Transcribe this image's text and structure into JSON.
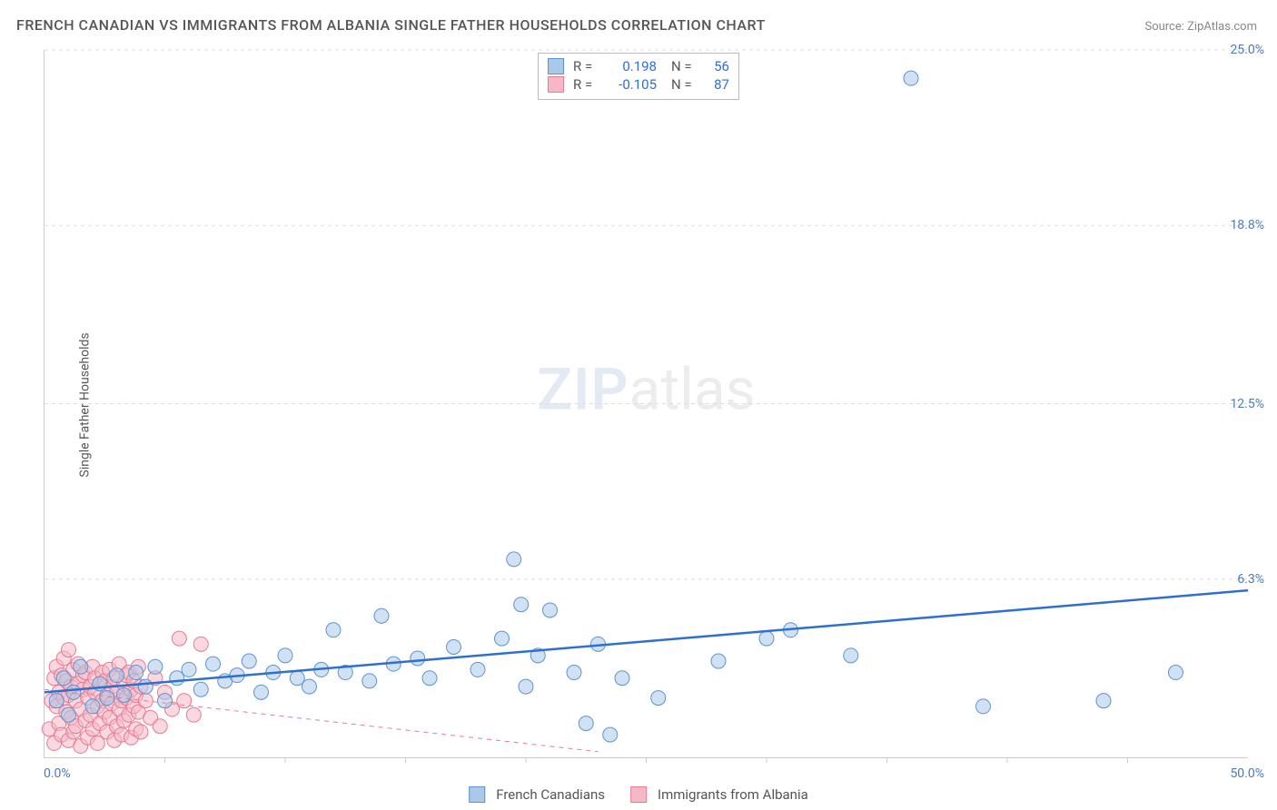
{
  "title": "FRENCH CANADIAN VS IMMIGRANTS FROM ALBANIA SINGLE FATHER HOUSEHOLDS CORRELATION CHART",
  "source": "Source: ZipAtlas.com",
  "y_axis_label": "Single Father Households",
  "watermark": {
    "zip": "ZIP",
    "atlas": "atlas"
  },
  "chart": {
    "type": "scatter",
    "xlim": [
      0,
      50
    ],
    "ylim": [
      0,
      25
    ],
    "x_min_label": "0.0%",
    "x_max_label": "50.0%",
    "y_ticks": [
      {
        "v": 6.3,
        "label": "6.3%"
      },
      {
        "v": 12.5,
        "label": "12.5%"
      },
      {
        "v": 18.8,
        "label": "18.8%"
      },
      {
        "v": 25.0,
        "label": "25.0%"
      }
    ],
    "x_minor_ticks": [
      5,
      10,
      15,
      20,
      25,
      30,
      35,
      40,
      45
    ],
    "background_color": "#ffffff",
    "grid_color": "#dddddd",
    "axis_color": "#cccccc",
    "tick_label_color": "#4a7ab8",
    "axis_label_color": "#555555",
    "marker_radius": 8,
    "marker_opacity": 0.55,
    "marker_stroke_width": 1,
    "trend_line_width_primary": 2.5,
    "trend_line_width_secondary": 1,
    "trend_dash_secondary": "5 5"
  },
  "series": [
    {
      "name": "French Canadians",
      "color_fill": "#a9c8ea",
      "color_stroke": "#5e93cf",
      "trend_color": "#2e6fd0",
      "trend": {
        "x1": 0,
        "y1": 2.3,
        "x2": 50,
        "y2": 5.9
      },
      "R": "0.198",
      "N": "56",
      "stat_color": "#2e6fd0",
      "points": [
        [
          0.5,
          2.0
        ],
        [
          0.8,
          2.8
        ],
        [
          1.0,
          1.5
        ],
        [
          1.2,
          2.3
        ],
        [
          1.5,
          3.2
        ],
        [
          2.0,
          1.8
        ],
        [
          2.3,
          2.6
        ],
        [
          2.6,
          2.1
        ],
        [
          3.0,
          2.9
        ],
        [
          3.3,
          2.2
        ],
        [
          3.8,
          3.0
        ],
        [
          4.2,
          2.5
        ],
        [
          4.6,
          3.2
        ],
        [
          5.0,
          2.0
        ],
        [
          5.5,
          2.8
        ],
        [
          6.0,
          3.1
        ],
        [
          6.5,
          2.4
        ],
        [
          7.0,
          3.3
        ],
        [
          7.5,
          2.7
        ],
        [
          8.0,
          2.9
        ],
        [
          8.5,
          3.4
        ],
        [
          9.0,
          2.3
        ],
        [
          9.5,
          3.0
        ],
        [
          10.0,
          3.6
        ],
        [
          10.5,
          2.8
        ],
        [
          11.0,
          2.5
        ],
        [
          11.5,
          3.1
        ],
        [
          12.0,
          4.5
        ],
        [
          12.5,
          3.0
        ],
        [
          13.5,
          2.7
        ],
        [
          14.0,
          5.0
        ],
        [
          14.5,
          3.3
        ],
        [
          15.5,
          3.5
        ],
        [
          16.0,
          2.8
        ],
        [
          17.0,
          3.9
        ],
        [
          18.0,
          3.1
        ],
        [
          19.0,
          4.2
        ],
        [
          19.5,
          7.0
        ],
        [
          19.8,
          5.4
        ],
        [
          20.0,
          2.5
        ],
        [
          20.5,
          3.6
        ],
        [
          21.0,
          5.2
        ],
        [
          22.0,
          3.0
        ],
        [
          22.5,
          1.2
        ],
        [
          23.0,
          4.0
        ],
        [
          23.5,
          0.8
        ],
        [
          24.0,
          2.8
        ],
        [
          25.5,
          2.1
        ],
        [
          28.0,
          3.4
        ],
        [
          30.0,
          4.2
        ],
        [
          31.0,
          4.5
        ],
        [
          33.5,
          3.6
        ],
        [
          36.0,
          24.0
        ],
        [
          39.0,
          1.8
        ],
        [
          44.0,
          2.0
        ],
        [
          47.0,
          3.0
        ]
      ]
    },
    {
      "name": "Immigrants from Albania",
      "color_fill": "#f6b8c5",
      "color_stroke": "#e77a94",
      "trend_color": "#e77a94",
      "trend": {
        "x1": 0,
        "y1": 2.4,
        "x2": 23,
        "y2": 0.2
      },
      "R": "-0.105",
      "N": "87",
      "stat_color": "#2e6fd0",
      "points": [
        [
          0.2,
          1.0
        ],
        [
          0.3,
          2.0
        ],
        [
          0.4,
          2.8
        ],
        [
          0.4,
          0.5
        ],
        [
          0.5,
          1.8
        ],
        [
          0.5,
          3.2
        ],
        [
          0.6,
          2.3
        ],
        [
          0.6,
          1.2
        ],
        [
          0.7,
          2.9
        ],
        [
          0.7,
          0.8
        ],
        [
          0.8,
          2.1
        ],
        [
          0.8,
          3.5
        ],
        [
          0.9,
          1.6
        ],
        [
          0.9,
          2.7
        ],
        [
          1.0,
          0.6
        ],
        [
          1.0,
          2.2
        ],
        [
          1.0,
          3.8
        ],
        [
          1.1,
          1.4
        ],
        [
          1.1,
          2.5
        ],
        [
          1.2,
          3.1
        ],
        [
          1.2,
          0.9
        ],
        [
          1.3,
          2.0
        ],
        [
          1.3,
          1.1
        ],
        [
          1.4,
          2.6
        ],
        [
          1.4,
          3.3
        ],
        [
          1.5,
          1.7
        ],
        [
          1.5,
          0.4
        ],
        [
          1.6,
          2.4
        ],
        [
          1.6,
          2.9
        ],
        [
          1.7,
          1.3
        ],
        [
          1.7,
          3.0
        ],
        [
          1.8,
          2.1
        ],
        [
          1.8,
          0.7
        ],
        [
          1.9,
          2.5
        ],
        [
          1.9,
          1.5
        ],
        [
          2.0,
          3.2
        ],
        [
          2.0,
          1.0
        ],
        [
          2.1,
          2.3
        ],
        [
          2.1,
          2.8
        ],
        [
          2.2,
          1.8
        ],
        [
          2.2,
          0.5
        ],
        [
          2.3,
          2.6
        ],
        [
          2.3,
          1.2
        ],
        [
          2.4,
          3.0
        ],
        [
          2.4,
          2.0
        ],
        [
          2.5,
          1.6
        ],
        [
          2.5,
          2.7
        ],
        [
          2.6,
          0.9
        ],
        [
          2.6,
          2.2
        ],
        [
          2.7,
          3.1
        ],
        [
          2.7,
          1.4
        ],
        [
          2.8,
          2.5
        ],
        [
          2.8,
          1.9
        ],
        [
          2.9,
          0.6
        ],
        [
          2.9,
          2.8
        ],
        [
          3.0,
          1.1
        ],
        [
          3.0,
          2.3
        ],
        [
          3.1,
          3.3
        ],
        [
          3.1,
          1.7
        ],
        [
          3.2,
          2.0
        ],
        [
          3.2,
          0.8
        ],
        [
          3.3,
          2.6
        ],
        [
          3.3,
          1.3
        ],
        [
          3.4,
          2.9
        ],
        [
          3.4,
          2.1
        ],
        [
          3.5,
          1.5
        ],
        [
          3.5,
          3.0
        ],
        [
          3.6,
          0.7
        ],
        [
          3.6,
          2.4
        ],
        [
          3.7,
          1.8
        ],
        [
          3.7,
          2.7
        ],
        [
          3.8,
          1.0
        ],
        [
          3.8,
          2.2
        ],
        [
          3.9,
          3.2
        ],
        [
          3.9,
          1.6
        ],
        [
          4.0,
          2.5
        ],
        [
          4.0,
          0.9
        ],
        [
          4.2,
          2.0
        ],
        [
          4.4,
          1.4
        ],
        [
          4.6,
          2.8
        ],
        [
          4.8,
          1.1
        ],
        [
          5.0,
          2.3
        ],
        [
          5.3,
          1.7
        ],
        [
          5.6,
          4.2
        ],
        [
          5.8,
          2.0
        ],
        [
          6.2,
          1.5
        ],
        [
          6.5,
          4.0
        ]
      ]
    }
  ],
  "legend": {
    "items": [
      {
        "label": "French Canadians",
        "fill": "#a9c8ea",
        "stroke": "#5e93cf"
      },
      {
        "label": "Immigrants from Albania",
        "fill": "#f6b8c5",
        "stroke": "#e77a94"
      }
    ]
  }
}
